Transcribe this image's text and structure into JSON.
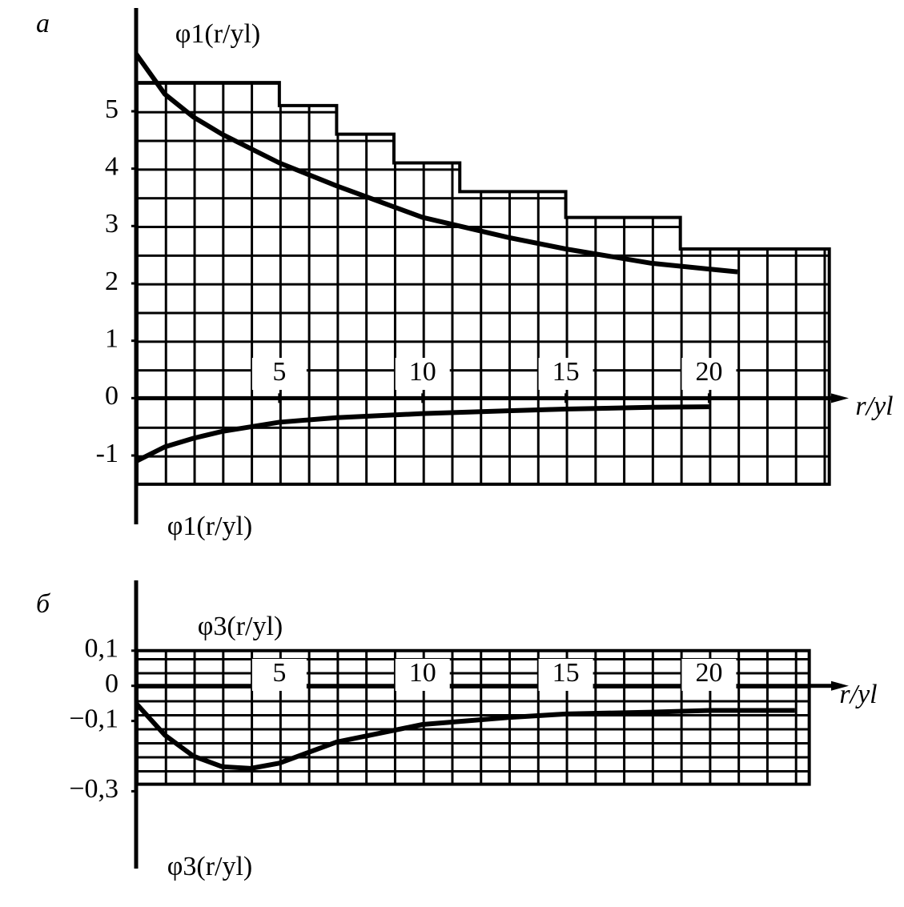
{
  "chart_data": [
    {
      "type": "line",
      "panel_label": "а",
      "y_label_top": "φ1(r/yl)",
      "y_label_bottom": "φ1(r/yl)",
      "x_label": "r/yl",
      "x": [
        0,
        1,
        2,
        3,
        5,
        7,
        10,
        13,
        15,
        18,
        20,
        21
      ],
      "series": [
        {
          "color": "#000000",
          "values": [
            6.0,
            5.3,
            4.9,
            4.6,
            4.1,
            3.7,
            3.15,
            2.8,
            2.6,
            2.35,
            2.25,
            2.2
          ]
        },
        {
          "color": "#000000",
          "values": [
            -1.1,
            -0.85,
            -0.7,
            -0.58,
            -0.42,
            -0.34,
            -0.27,
            -0.22,
            -0.19,
            -0.16,
            -0.15,
            null
          ]
        }
      ],
      "xlim": [
        0,
        24.6
      ],
      "xticks": [
        5,
        10,
        15,
        20
      ],
      "ylim": [
        -2.2,
        6.8
      ],
      "yticks": [
        5,
        4,
        3,
        2,
        1,
        0,
        -1
      ],
      "grid": true
    },
    {
      "type": "line",
      "panel_label": "б",
      "y_label_top": "φ3(r/yl)",
      "y_label_bottom": "φ3(r/yl)",
      "x_label": "r/yl",
      "x": [
        0,
        1,
        2,
        3,
        4,
        5,
        7,
        10,
        13,
        15,
        18,
        20,
        23
      ],
      "series": [
        {
          "color": "#000000",
          "values": [
            -0.05,
            -0.14,
            -0.2,
            -0.23,
            -0.235,
            -0.22,
            -0.16,
            -0.11,
            -0.09,
            -0.08,
            -0.075,
            -0.07,
            -0.07
          ]
        }
      ],
      "xlim": [
        0,
        24.6
      ],
      "xticks": [
        5,
        10,
        15,
        20
      ],
      "ylim": [
        -0.52,
        0.3
      ],
      "yticks": [
        {
          "value": 0.1,
          "label": "0,1"
        },
        0,
        {
          "value": -0.1,
          "label": "−0,1"
        },
        {
          "value": -0.3,
          "label": "−0,3"
        }
      ],
      "grid": true
    }
  ]
}
